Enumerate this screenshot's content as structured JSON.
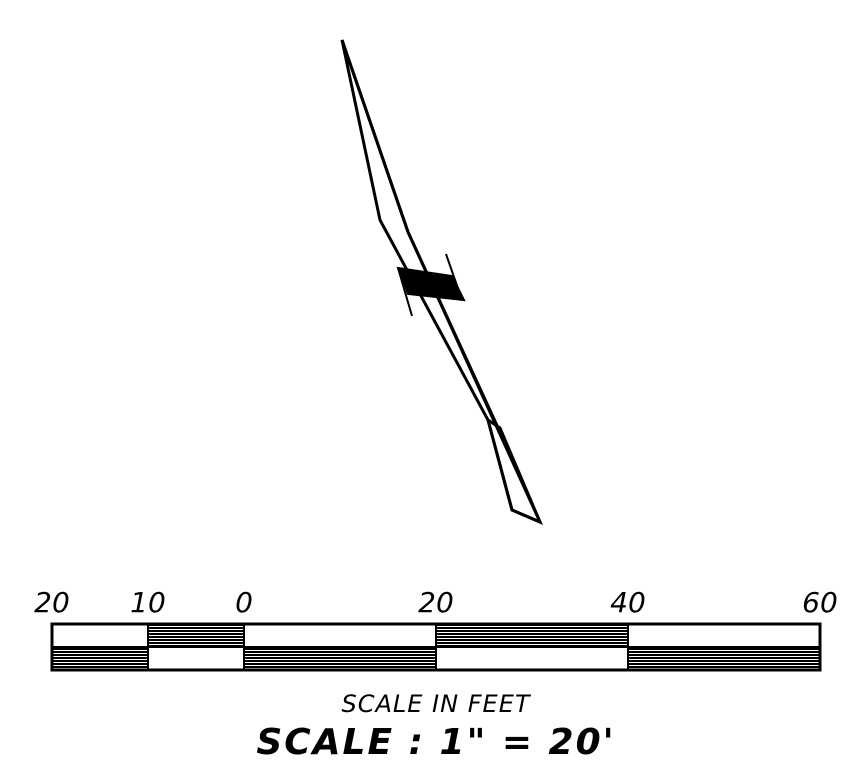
{
  "scale_bar": {
    "tick_labels": [
      "20",
      "10",
      "0",
      "20",
      "40",
      "60"
    ],
    "caption": "SCALE IN FEET",
    "scale_text": "SCALE : 1\" = 20'"
  },
  "colors": {
    "ink": "#000000",
    "paper": "#ffffff"
  }
}
